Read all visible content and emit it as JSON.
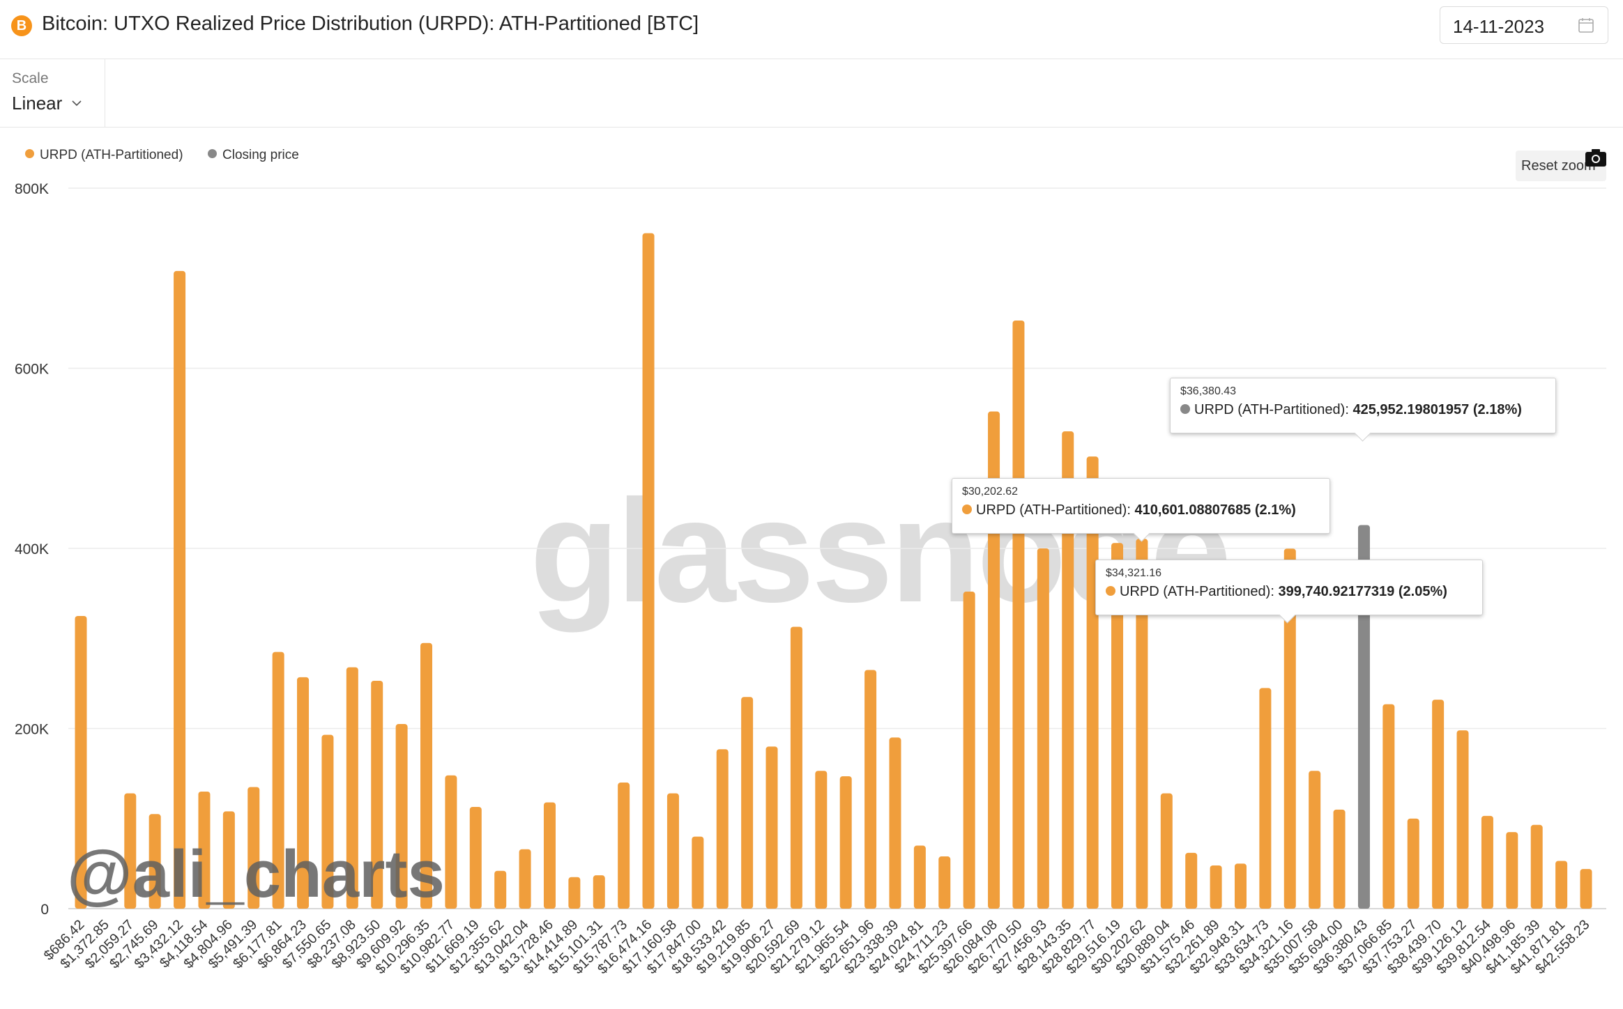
{
  "header": {
    "title": "Bitcoin: UTXO Realized Price Distribution (URPD): ATH-Partitioned [BTC]",
    "logo_glyph": "B",
    "date": "14-11-2023"
  },
  "toolbar": {
    "scale_label": "Scale",
    "scale_value": "Linear"
  },
  "legend": {
    "urpd": "URPD (ATH-Partitioned)",
    "closing": "Closing price"
  },
  "reset_zoom_label": "Reset zoom",
  "colors": {
    "urpd": "#f09e3c",
    "closing": "#888888",
    "grid": "#ececec",
    "axis_text": "#333333"
  },
  "watermarks": {
    "brand": "glassnode",
    "author": "@ali_charts"
  },
  "tooltips": [
    {
      "price": "$30,202.62",
      "series": "URPD (ATH-Partitioned):",
      "value": "410,601.08807685 (2.1%)",
      "kind": "urpd"
    },
    {
      "price": "$34,321.16",
      "series": "URPD (ATH-Partitioned):",
      "value": "399,740.92177319 (2.05%)",
      "kind": "urpd"
    },
    {
      "price": "$36,380.43",
      "series": "URPD (ATH-Partitioned):",
      "value": "425,952.19801957 (2.18%)",
      "kind": "closing"
    }
  ],
  "chart_data": {
    "type": "bar",
    "ylim": [
      0,
      800000
    ],
    "y_ticks": [
      0,
      200000,
      400000,
      600000,
      800000
    ],
    "y_tick_labels": [
      "0",
      "200K",
      "400K",
      "600K",
      "800K"
    ],
    "categories": [
      "$686.42",
      "$1,372.85",
      "$2,059.27",
      "$2,745.69",
      "$3,432.12",
      "$4,118.54",
      "$4,804.96",
      "$5,491.39",
      "$6,177.81",
      "$6,864.23",
      "$7,550.65",
      "$8,237.08",
      "$8,923.50",
      "$9,609.92",
      "$10,296.35",
      "$10,982.77",
      "$11,669.19",
      "$12,355.62",
      "$13,042.04",
      "$13,728.46",
      "$14,414.89",
      "$15,101.31",
      "$15,787.73",
      "$16,474.16",
      "$17,160.58",
      "$17,847.00",
      "$18,533.42",
      "$19,219.85",
      "$19,906.27",
      "$20,592.69",
      "$21,279.12",
      "$21,965.54",
      "$22,651.96",
      "$23,338.39",
      "$24,024.81",
      "$24,711.23",
      "$25,397.66",
      "$26,084.08",
      "$26,770.50",
      "$27,456.93",
      "$28,143.35",
      "$28,829.77",
      "$29,516.19",
      "$30,202.62",
      "$30,889.04",
      "$31,575.46",
      "$32,261.89",
      "$32,948.31",
      "$33,634.73",
      "$34,321.16",
      "$35,007.58",
      "$35,694.00",
      "$36,380.43",
      "$37,066.85",
      "$37,753.27",
      "$38,439.70",
      "$39,126.12",
      "$39,812.54",
      "$40,498.96",
      "$41,185.39",
      "$41,871.81",
      "$42,558.23"
    ],
    "series": [
      {
        "name": "URPD (ATH-Partitioned)",
        "values": [
          325000,
          0,
          128000,
          105000,
          708000,
          130000,
          108000,
          135000,
          285000,
          257000,
          193000,
          268000,
          253000,
          205000,
          295000,
          148000,
          113000,
          42000,
          66000,
          118000,
          35000,
          37000,
          140000,
          750000,
          128000,
          80000,
          177000,
          235000,
          180000,
          313000,
          153000,
          147000,
          265000,
          190000,
          70000,
          58000,
          352000,
          552000,
          653000,
          400000,
          530000,
          502000,
          406000,
          410601,
          128000,
          62000,
          48000,
          50000,
          245000,
          399741,
          153000,
          110000,
          0,
          227000,
          100000,
          232000,
          198000,
          103000,
          85000,
          93000,
          53000,
          44000
        ]
      },
      {
        "name": "Closing price",
        "index": 52,
        "value": 425952
      }
    ]
  }
}
